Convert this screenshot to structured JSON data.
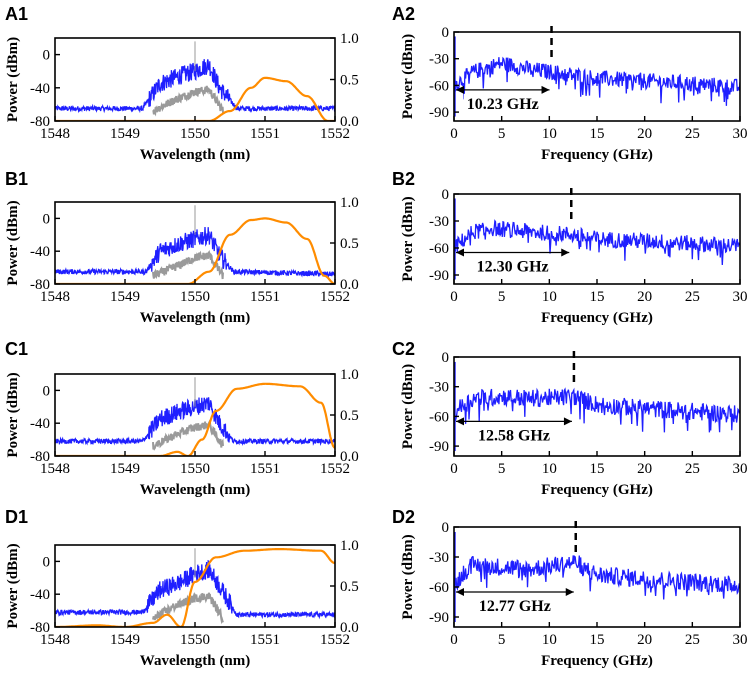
{
  "figure": {
    "description_colors": {
      "spectrum": "#1f1fff",
      "reference": "#9a9a9a",
      "filter": "#ff8c00",
      "axis": "#000000"
    }
  },
  "chart_data": [
    {
      "panel": "A1",
      "type": "line",
      "xlabel": "Wavelength (nm)",
      "ylabel": "Power (dBm)",
      "xlim": [
        1548,
        1552
      ],
      "ylim": [
        -80,
        20
      ],
      "y2lim": [
        0,
        1.0
      ],
      "xticks": [
        1548,
        1549,
        1550,
        1551,
        1552
      ],
      "yticks": [
        -80,
        -40,
        0
      ],
      "y2ticks": [
        0.0,
        0.5,
        1.0
      ],
      "series": [
        {
          "name": "blue spectrum",
          "x": [
            1548,
            1549.25,
            1549.5,
            1549.8,
            1550.0,
            1550.2,
            1550.35,
            1550.6,
            1552
          ],
          "values": [
            -65,
            -65,
            -35,
            -25,
            -20,
            -12,
            -40,
            -65,
            -65
          ]
        },
        {
          "name": "grey spectrum",
          "x": [
            1549.4,
            1549.7,
            1550.0,
            1550.2,
            1550.4
          ],
          "values": [
            -68,
            -55,
            -45,
            -42,
            -68
          ]
        },
        {
          "name": "orange filter (right axis)",
          "x": [
            1548,
            1550.2,
            1550.5,
            1550.8,
            1551.0,
            1551.3,
            1551.6,
            1551.9
          ],
          "values": [
            0,
            0,
            0.12,
            0.4,
            0.52,
            0.48,
            0.3,
            0
          ]
        }
      ]
    },
    {
      "panel": "A2",
      "type": "line",
      "xlabel": "Frequency (GHz)",
      "ylabel": "Power (dBm)",
      "xlim": [
        0,
        30
      ],
      "ylim": [
        -100,
        0
      ],
      "xticks": [
        0,
        5,
        10,
        15,
        20,
        25,
        30
      ],
      "yticks": [
        -90,
        -60,
        -30,
        0
      ],
      "series": [
        {
          "name": "RF spectrum",
          "x": [
            0,
            2,
            5,
            8,
            10.23,
            15,
            20,
            25,
            30
          ],
          "values": [
            -60,
            -45,
            -35,
            -42,
            -45,
            -52,
            -55,
            -58,
            -62
          ]
        }
      ],
      "annotation": {
        "text": "10.23 GHz",
        "value_ghz": 10.23
      }
    },
    {
      "panel": "B1",
      "type": "line",
      "xlabel": "Wavelength (nm)",
      "ylabel": "Power (dBm)",
      "xlim": [
        1548,
        1552
      ],
      "ylim": [
        -80,
        20
      ],
      "y2lim": [
        0,
        1.0
      ],
      "xticks": [
        1548,
        1549,
        1550,
        1551,
        1552
      ],
      "yticks": [
        -80,
        -40,
        0
      ],
      "y2ticks": [
        0.0,
        0.5,
        1.0
      ],
      "series": [
        {
          "name": "blue spectrum",
          "x": [
            1548,
            1549.3,
            1549.5,
            1549.8,
            1550.0,
            1550.2,
            1550.35,
            1550.55,
            1552
          ],
          "values": [
            -65,
            -65,
            -40,
            -30,
            -25,
            -20,
            -45,
            -65,
            -68
          ]
        },
        {
          "name": "grey spectrum",
          "x": [
            1549.4,
            1549.7,
            1550.0,
            1550.2,
            1550.4
          ],
          "values": [
            -70,
            -60,
            -48,
            -45,
            -70
          ]
        },
        {
          "name": "orange filter (right axis)",
          "x": [
            1548,
            1549.9,
            1550.2,
            1550.5,
            1550.8,
            1551.0,
            1551.3,
            1551.6,
            1551.85,
            1552
          ],
          "values": [
            0,
            0,
            0.15,
            0.6,
            0.78,
            0.8,
            0.75,
            0.55,
            0.1,
            0
          ]
        }
      ]
    },
    {
      "panel": "B2",
      "type": "line",
      "xlabel": "Frequency (GHz)",
      "ylabel": "Power (dBm)",
      "xlim": [
        0,
        30
      ],
      "ylim": [
        -100,
        0
      ],
      "xticks": [
        0,
        5,
        10,
        15,
        20,
        25,
        30
      ],
      "yticks": [
        -90,
        -60,
        -30,
        0
      ],
      "series": [
        {
          "name": "RF spectrum",
          "x": [
            0,
            2,
            4,
            8,
            12.3,
            15,
            20,
            25,
            30
          ],
          "values": [
            -60,
            -42,
            -38,
            -42,
            -45,
            -50,
            -52,
            -55,
            -58
          ]
        }
      ],
      "annotation": {
        "text": "12.30 GHz",
        "value_ghz": 12.3
      }
    },
    {
      "panel": "C1",
      "type": "line",
      "xlabel": "Wavelength (nm)",
      "ylabel": "Power (dBm)",
      "xlim": [
        1548,
        1552
      ],
      "ylim": [
        -80,
        20
      ],
      "y2lim": [
        0,
        1.0
      ],
      "xticks": [
        1548,
        1549,
        1550,
        1551,
        1552
      ],
      "yticks": [
        -80,
        -40,
        0
      ],
      "y2ticks": [
        0.0,
        0.5,
        1.0
      ],
      "series": [
        {
          "name": "blue spectrum",
          "x": [
            1548,
            1549.25,
            1549.5,
            1549.8,
            1550.0,
            1550.2,
            1550.35,
            1550.55,
            1552
          ],
          "values": [
            -62,
            -62,
            -35,
            -25,
            -20,
            -15,
            -40,
            -62,
            -62
          ]
        },
        {
          "name": "grey spectrum",
          "x": [
            1549.4,
            1549.7,
            1550.0,
            1550.2,
            1550.4
          ],
          "values": [
            -68,
            -55,
            -45,
            -42,
            -68
          ]
        },
        {
          "name": "orange filter (right axis)",
          "x": [
            1548,
            1549.5,
            1549.75,
            1549.9,
            1550.1,
            1550.3,
            1550.6,
            1551.0,
            1551.5,
            1551.8,
            1552
          ],
          "values": [
            0,
            0,
            0.05,
            0,
            0.2,
            0.55,
            0.82,
            0.88,
            0.85,
            0.65,
            0.1
          ]
        }
      ]
    },
    {
      "panel": "C2",
      "type": "line",
      "xlabel": "Frequency (GHz)",
      "ylabel": "Power (dBm)",
      "xlim": [
        0,
        30
      ],
      "ylim": [
        -100,
        0
      ],
      "xticks": [
        0,
        5,
        10,
        15,
        20,
        25,
        30
      ],
      "yticks": [
        -90,
        -60,
        -30,
        0
      ],
      "series": [
        {
          "name": "RF spectrum",
          "x": [
            0,
            2,
            5,
            8,
            12.58,
            15,
            20,
            25,
            30
          ],
          "values": [
            -55,
            -42,
            -40,
            -42,
            -40,
            -48,
            -52,
            -55,
            -58
          ]
        }
      ],
      "annotation": {
        "text": "12.58 GHz",
        "value_ghz": 12.58
      }
    },
    {
      "panel": "D1",
      "type": "line",
      "xlabel": "Wavelength (nm)",
      "ylabel": "Power (dBm)",
      "xlim": [
        1548,
        1552
      ],
      "ylim": [
        -80,
        20
      ],
      "y2lim": [
        0,
        1.0
      ],
      "xticks": [
        1548,
        1549,
        1550,
        1551,
        1552
      ],
      "yticks": [
        -80,
        -40,
        0
      ],
      "y2ticks": [
        0.0,
        0.5,
        1.0
      ],
      "series": [
        {
          "name": "blue spectrum",
          "x": [
            1548,
            1549.25,
            1549.5,
            1549.8,
            1550.0,
            1550.2,
            1550.35,
            1550.6,
            1552
          ],
          "values": [
            -62,
            -62,
            -35,
            -25,
            -15,
            -10,
            -30,
            -65,
            -65
          ]
        },
        {
          "name": "grey spectrum",
          "x": [
            1549.4,
            1549.7,
            1550.0,
            1550.2,
            1550.4
          ],
          "values": [
            -70,
            -55,
            -45,
            -42,
            -70
          ]
        },
        {
          "name": "orange filter (right axis)",
          "x": [
            1548,
            1548.6,
            1549.0,
            1549.4,
            1549.6,
            1549.8,
            1550.0,
            1550.3,
            1550.7,
            1551.2,
            1551.8,
            1552
          ],
          "values": [
            0,
            0.02,
            0.0,
            0.05,
            0.15,
            0.0,
            0.55,
            0.85,
            0.93,
            0.95,
            0.93,
            0.78
          ]
        }
      ]
    },
    {
      "panel": "D2",
      "type": "line",
      "xlabel": "Frequency (GHz)",
      "ylabel": "Power (dBm)",
      "xlim": [
        0,
        30
      ],
      "ylim": [
        -100,
        0
      ],
      "xticks": [
        0,
        5,
        10,
        15,
        20,
        25,
        30
      ],
      "yticks": [
        -90,
        -60,
        -30,
        0
      ],
      "series": [
        {
          "name": "RF spectrum",
          "x": [
            0,
            1,
            2,
            5,
            8,
            12.77,
            15,
            20,
            25,
            30
          ],
          "values": [
            -60,
            -45,
            -38,
            -40,
            -42,
            -35,
            -48,
            -52,
            -55,
            -58
          ]
        }
      ],
      "annotation": {
        "text": "12.77 GHz",
        "value_ghz": 12.77
      }
    }
  ]
}
